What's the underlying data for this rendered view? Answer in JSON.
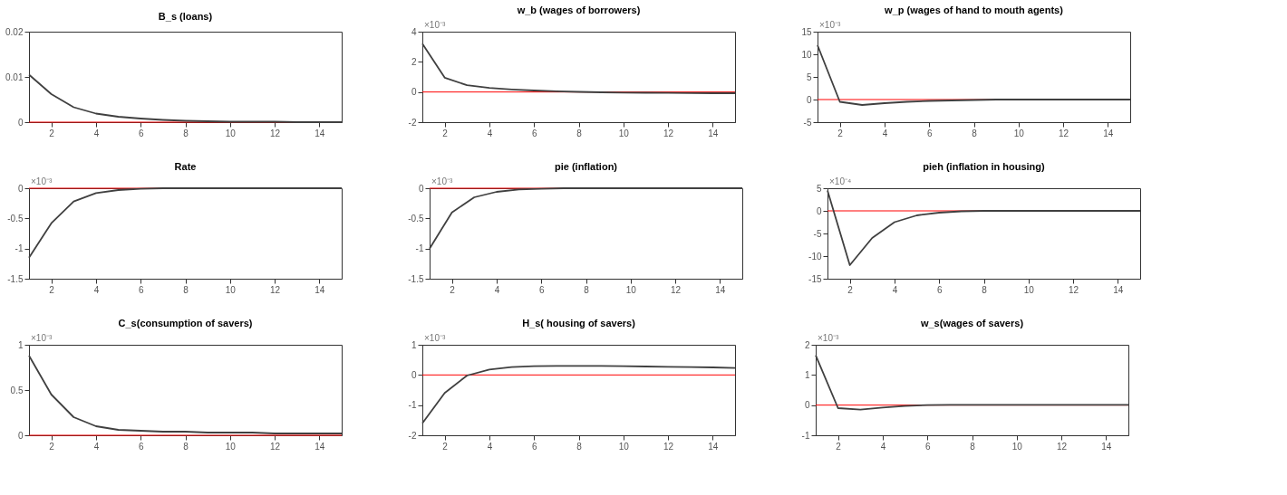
{
  "chart_data": [
    {
      "type": "line",
      "title": "B_s (loans)",
      "x": [
        1,
        2,
        3,
        4,
        5,
        6,
        7,
        8,
        9,
        10,
        11,
        12,
        13,
        14,
        15
      ],
      "xlim": [
        1,
        15
      ],
      "xticks": [
        2,
        4,
        6,
        8,
        10,
        12,
        14
      ],
      "ylim": [
        0,
        0.02
      ],
      "yticks": [
        0,
        0.01,
        0.02
      ],
      "grid": false,
      "series": [
        {
          "color": "#404040",
          "values": [
            0.0105,
            0.0062,
            0.0033,
            0.0019,
            0.0012,
            0.0008,
            0.0005,
            0.0003,
            0.0002,
            0.0001,
            0.0001,
            0.0001,
            0.0,
            0.0,
            0.0
          ]
        }
      ],
      "ref_lines": [
        {
          "axis": "y",
          "value": 0,
          "color": "#ff0000"
        }
      ]
    },
    {
      "type": "line",
      "title": "w_b (wages of borrowers)",
      "annotations": [
        "×10⁻³"
      ],
      "x": [
        1,
        2,
        3,
        4,
        5,
        6,
        7,
        8,
        9,
        10,
        11,
        12,
        13,
        14,
        15
      ],
      "xlim": [
        1,
        15
      ],
      "xticks": [
        2,
        4,
        6,
        8,
        10,
        12,
        14
      ],
      "ylim": [
        -2,
        4
      ],
      "yticks": [
        -2,
        0,
        2,
        4
      ],
      "grid": false,
      "series": [
        {
          "color": "#404040",
          "values": [
            3.2,
            0.95,
            0.45,
            0.27,
            0.17,
            0.1,
            0.05,
            0.01,
            -0.02,
            -0.04,
            -0.05,
            -0.06,
            -0.07,
            -0.08,
            -0.08
          ]
        }
      ],
      "ref_lines": [
        {
          "axis": "y",
          "value": 0,
          "color": "#ff0000"
        }
      ]
    },
    {
      "type": "line",
      "title": "w_p (wages of hand to mouth agents)",
      "annotations": [
        "×10⁻³"
      ],
      "x": [
        1,
        2,
        3,
        4,
        5,
        6,
        7,
        8,
        9,
        10,
        11,
        12,
        13,
        14,
        15
      ],
      "xlim": [
        1,
        15
      ],
      "xticks": [
        2,
        4,
        6,
        8,
        10,
        12,
        14
      ],
      "ylim": [
        -5,
        15
      ],
      "yticks": [
        -5,
        0,
        5,
        10,
        15
      ],
      "grid": false,
      "series": [
        {
          "color": "#404040",
          "values": [
            12,
            -0.5,
            -1.2,
            -0.8,
            -0.5,
            -0.3,
            -0.2,
            -0.1,
            0,
            0,
            0,
            0,
            0,
            0,
            0
          ]
        }
      ],
      "ref_lines": [
        {
          "axis": "y",
          "value": 0,
          "color": "#ff0000"
        }
      ]
    },
    {
      "type": "line",
      "title": "Rate",
      "annotations": [
        "×10⁻³"
      ],
      "x": [
        1,
        2,
        3,
        4,
        5,
        6,
        7,
        8,
        9,
        10,
        11,
        12,
        13,
        14,
        15
      ],
      "xlim": [
        1,
        15
      ],
      "xticks": [
        2,
        4,
        6,
        8,
        10,
        12,
        14
      ],
      "ylim": [
        -1.5,
        0
      ],
      "yticks": [
        -1.5,
        -1,
        -0.5,
        0
      ],
      "grid": false,
      "series": [
        {
          "color": "#404040",
          "values": [
            -1.15,
            -0.58,
            -0.22,
            -0.08,
            -0.03,
            -0.01,
            0,
            0,
            0,
            0,
            0,
            0,
            0,
            0,
            0
          ]
        }
      ],
      "ref_lines": [
        {
          "axis": "y",
          "value": 0,
          "color": "#ff0000"
        }
      ]
    },
    {
      "type": "line",
      "title": "pie (inflation)",
      "annotations": [
        "×10⁻³"
      ],
      "x": [
        1,
        2,
        3,
        4,
        5,
        6,
        7,
        8,
        9,
        10,
        11,
        12,
        13,
        14,
        15
      ],
      "xlim": [
        1,
        15
      ],
      "xticks": [
        2,
        4,
        6,
        8,
        10,
        12,
        14
      ],
      "ylim": [
        -1.5,
        0
      ],
      "yticks": [
        -1.5,
        -1,
        -0.5,
        0
      ],
      "grid": false,
      "series": [
        {
          "color": "#404040",
          "values": [
            -1.0,
            -0.4,
            -0.15,
            -0.06,
            -0.02,
            -0.01,
            0,
            0,
            0,
            0,
            0,
            0,
            0,
            0,
            0
          ]
        }
      ],
      "ref_lines": [
        {
          "axis": "y",
          "value": 0,
          "color": "#ff0000"
        }
      ]
    },
    {
      "type": "line",
      "title": "pieh (inflation in housing)",
      "annotations": [
        "×10⁻⁴"
      ],
      "x": [
        1,
        2,
        3,
        4,
        5,
        6,
        7,
        8,
        9,
        10,
        11,
        12,
        13,
        14,
        15
      ],
      "xlim": [
        1,
        15
      ],
      "xticks": [
        2,
        4,
        6,
        8,
        10,
        12,
        14
      ],
      "ylim": [
        -15,
        5
      ],
      "yticks": [
        -15,
        -10,
        -5,
        0,
        5
      ],
      "grid": false,
      "series": [
        {
          "color": "#404040",
          "values": [
            4.5,
            -12,
            -6,
            -2.5,
            -1,
            -0.4,
            -0.1,
            0,
            0,
            0,
            0,
            0,
            0,
            0,
            0
          ]
        }
      ],
      "ref_lines": [
        {
          "axis": "y",
          "value": 0,
          "color": "#ff0000"
        }
      ]
    },
    {
      "type": "line",
      "title": "C_s(consumption of savers)",
      "annotations": [
        "×10⁻³"
      ],
      "x": [
        1,
        2,
        3,
        4,
        5,
        6,
        7,
        8,
        9,
        10,
        11,
        12,
        13,
        14,
        15
      ],
      "xlim": [
        1,
        15
      ],
      "xticks": [
        2,
        4,
        6,
        8,
        10,
        12,
        14
      ],
      "ylim": [
        0,
        1
      ],
      "yticks": [
        0,
        0.5,
        1
      ],
      "grid": false,
      "series": [
        {
          "color": "#404040",
          "values": [
            0.88,
            0.45,
            0.2,
            0.1,
            0.06,
            0.05,
            0.04,
            0.04,
            0.03,
            0.03,
            0.03,
            0.02,
            0.02,
            0.02,
            0.02
          ]
        }
      ],
      "ref_lines": [
        {
          "axis": "y",
          "value": 0,
          "color": "#ff0000"
        }
      ]
    },
    {
      "type": "line",
      "title": "H_s( housing of savers)",
      "annotations": [
        "×10⁻³"
      ],
      "x": [
        1,
        2,
        3,
        4,
        5,
        6,
        7,
        8,
        9,
        10,
        11,
        12,
        13,
        14,
        15
      ],
      "xlim": [
        1,
        15
      ],
      "xticks": [
        2,
        4,
        6,
        8,
        10,
        12,
        14
      ],
      "ylim": [
        -2,
        1
      ],
      "yticks": [
        -2,
        -1,
        0,
        1
      ],
      "grid": false,
      "series": [
        {
          "color": "#404040",
          "values": [
            -1.6,
            -0.6,
            -0.02,
            0.18,
            0.26,
            0.29,
            0.3,
            0.3,
            0.3,
            0.29,
            0.28,
            0.27,
            0.26,
            0.25,
            0.23
          ]
        }
      ],
      "ref_lines": [
        {
          "axis": "y",
          "value": 0,
          "color": "#ff0000"
        }
      ]
    },
    {
      "type": "line",
      "title": "w_s(wages of savers)",
      "annotations": [
        "×10⁻³"
      ],
      "x": [
        1,
        2,
        3,
        4,
        5,
        6,
        7,
        8,
        9,
        10,
        11,
        12,
        13,
        14,
        15
      ],
      "xlim": [
        1,
        15
      ],
      "xticks": [
        2,
        4,
        6,
        8,
        10,
        12,
        14
      ],
      "ylim": [
        -1,
        2
      ],
      "yticks": [
        -1,
        0,
        1,
        2
      ],
      "grid": false,
      "series": [
        {
          "color": "#404040",
          "values": [
            1.65,
            -0.1,
            -0.15,
            -0.08,
            -0.03,
            0,
            0.01,
            0.01,
            0.01,
            0.01,
            0.01,
            0.01,
            0.01,
            0.01,
            0.01
          ]
        }
      ],
      "ref_lines": [
        {
          "axis": "y",
          "value": 0,
          "color": "#ff0000"
        }
      ]
    }
  ]
}
